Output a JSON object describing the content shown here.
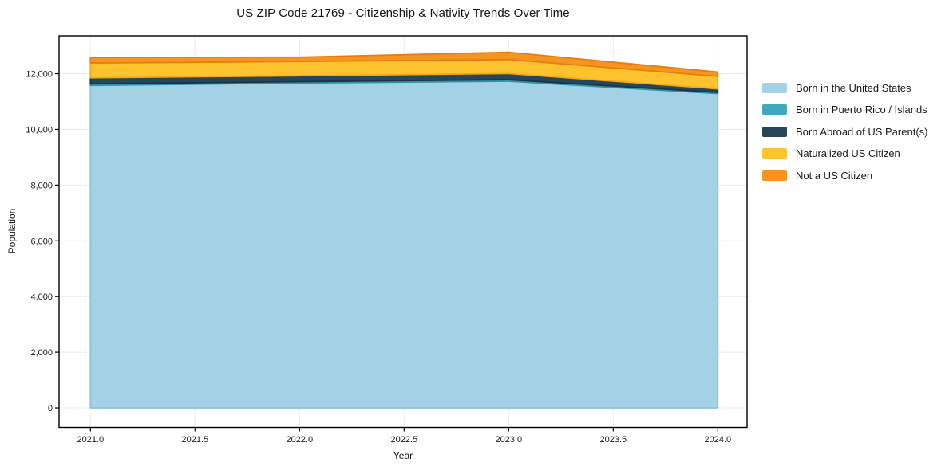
{
  "page": {
    "background_color": "#ffffff",
    "text_color": "#141414"
  },
  "chart_data": {
    "type": "area",
    "stacked": true,
    "title": "US ZIP Code 21769 - Citizenship & Nativity Trends Over Time",
    "xlabel": "Year",
    "ylabel": "Population",
    "x": [
      2021,
      2022,
      2023,
      2024
    ],
    "series": [
      {
        "name": "Born in the United States",
        "color": "#a3d1e6",
        "edge_color": "#8cc1da",
        "values": [
          11580,
          11665,
          11730,
          11285
        ]
      },
      {
        "name": "Born in Puerto Rico / Islands",
        "color": "#41a7bf",
        "edge_color": "#2f92ab",
        "values": [
          55,
          50,
          55,
          45
        ]
      },
      {
        "name": "Born Abroad of US Parent(s)",
        "color": "#27465a",
        "edge_color": "#1b3443",
        "values": [
          215,
          210,
          220,
          125
        ]
      },
      {
        "name": "Naturalized US Citizen",
        "color": "#fdc32f",
        "edge_color": "#f2a713",
        "values": [
          535,
          515,
          505,
          450
        ]
      },
      {
        "name": "Not a US Citizen",
        "color": "#f79420",
        "edge_color": "#e67e0e",
        "values": [
          200,
          155,
          260,
          155
        ]
      }
    ],
    "totals": [
      12585,
      12595,
      12770,
      12060
    ],
    "xlim": [
      2020.85,
      2024.14
    ],
    "ylim": [
      -700,
      13360
    ],
    "xticks": {
      "values": [
        2021.0,
        2021.5,
        2022.0,
        2022.5,
        2023.0,
        2023.5,
        2024.0
      ],
      "labels": [
        "2021.0",
        "2021.5",
        "2022.0",
        "2022.5",
        "2023.0",
        "2023.5",
        "2024.0"
      ]
    },
    "yticks": {
      "values": [
        0,
        2000,
        4000,
        6000,
        8000,
        10000,
        12000
      ],
      "labels": [
        "0",
        "2,000",
        "4,000",
        "6,000",
        "8,000",
        "10,000",
        "12,000"
      ]
    },
    "grid": true,
    "grid_color": "#ebebeb",
    "frame_color": "#000000",
    "legend_position": "right-outside"
  }
}
